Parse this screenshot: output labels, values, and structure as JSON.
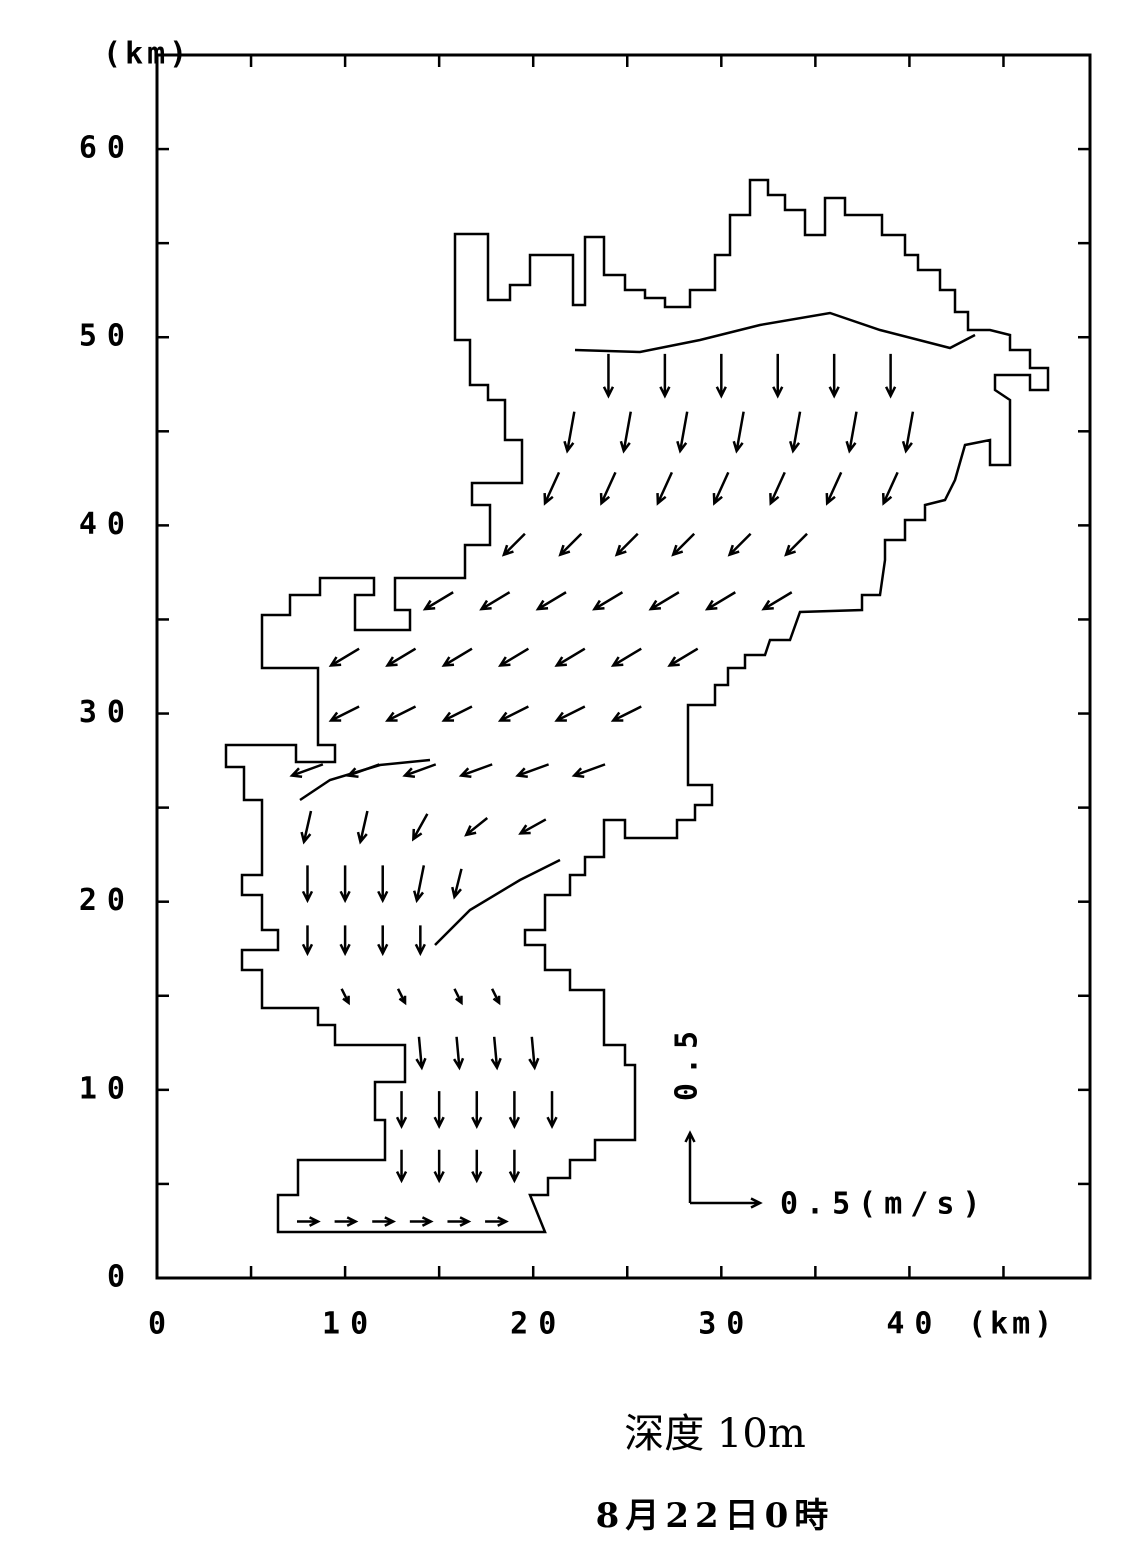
{
  "chart_data": {
    "type": "quiver",
    "ylabel": "(km)",
    "xlabel": "(km)",
    "xlim": [
      0,
      49.6
    ],
    "ylim": [
      0,
      65
    ],
    "xticks": [
      0,
      10,
      20,
      30,
      40
    ],
    "xminorticks": [
      5,
      15,
      25,
      35,
      45
    ],
    "yticks": [
      0,
      10,
      20,
      30,
      40,
      50,
      60
    ],
    "yminorticks": [
      5,
      15,
      25,
      35,
      45,
      55
    ],
    "key": {
      "u": 0.5,
      "v": 0.5,
      "u_label": "0.5(m/s)",
      "v_label": "0.5"
    },
    "subtitle": "深度 10m",
    "caption": "8月22日0時",
    "color": "#000000",
    "vectors": [
      {
        "x": 24,
        "y": 48,
        "u": 0,
        "v": -0.3
      },
      {
        "x": 27,
        "y": 48,
        "u": 0,
        "v": -0.3
      },
      {
        "x": 30,
        "y": 48,
        "u": 0,
        "v": -0.3
      },
      {
        "x": 33,
        "y": 48,
        "u": 0,
        "v": -0.3
      },
      {
        "x": 36,
        "y": 48,
        "u": 0,
        "v": -0.3
      },
      {
        "x": 39,
        "y": 48,
        "u": 0,
        "v": -0.3
      },
      {
        "x": 22,
        "y": 45,
        "u": -0.05,
        "v": -0.28
      },
      {
        "x": 25,
        "y": 45,
        "u": -0.05,
        "v": -0.28
      },
      {
        "x": 28,
        "y": 45,
        "u": -0.05,
        "v": -0.28
      },
      {
        "x": 31,
        "y": 45,
        "u": -0.05,
        "v": -0.28
      },
      {
        "x": 34,
        "y": 45,
        "u": -0.05,
        "v": -0.28
      },
      {
        "x": 37,
        "y": 45,
        "u": -0.05,
        "v": -0.28
      },
      {
        "x": 40,
        "y": 45,
        "u": -0.05,
        "v": -0.28
      },
      {
        "x": 21,
        "y": 42,
        "u": -0.1,
        "v": -0.22
      },
      {
        "x": 24,
        "y": 42,
        "u": -0.1,
        "v": -0.22
      },
      {
        "x": 27,
        "y": 42,
        "u": -0.1,
        "v": -0.22
      },
      {
        "x": 30,
        "y": 42,
        "u": -0.1,
        "v": -0.22
      },
      {
        "x": 33,
        "y": 42,
        "u": -0.1,
        "v": -0.22
      },
      {
        "x": 36,
        "y": 42,
        "u": -0.1,
        "v": -0.22
      },
      {
        "x": 39,
        "y": 42,
        "u": -0.1,
        "v": -0.22
      },
      {
        "x": 19,
        "y": 39,
        "u": -0.15,
        "v": -0.15
      },
      {
        "x": 22,
        "y": 39,
        "u": -0.15,
        "v": -0.15
      },
      {
        "x": 25,
        "y": 39,
        "u": -0.15,
        "v": -0.15
      },
      {
        "x": 28,
        "y": 39,
        "u": -0.15,
        "v": -0.15
      },
      {
        "x": 31,
        "y": 39,
        "u": -0.15,
        "v": -0.15
      },
      {
        "x": 34,
        "y": 39,
        "u": -0.15,
        "v": -0.15
      },
      {
        "x": 15,
        "y": 36,
        "u": -0.2,
        "v": -0.12
      },
      {
        "x": 18,
        "y": 36,
        "u": -0.2,
        "v": -0.12
      },
      {
        "x": 21,
        "y": 36,
        "u": -0.2,
        "v": -0.12
      },
      {
        "x": 24,
        "y": 36,
        "u": -0.2,
        "v": -0.12
      },
      {
        "x": 27,
        "y": 36,
        "u": -0.2,
        "v": -0.12
      },
      {
        "x": 30,
        "y": 36,
        "u": -0.2,
        "v": -0.12
      },
      {
        "x": 33,
        "y": 36,
        "u": -0.2,
        "v": -0.12
      },
      {
        "x": 10,
        "y": 33,
        "u": -0.2,
        "v": -0.12
      },
      {
        "x": 13,
        "y": 33,
        "u": -0.2,
        "v": -0.12
      },
      {
        "x": 16,
        "y": 33,
        "u": -0.2,
        "v": -0.12
      },
      {
        "x": 19,
        "y": 33,
        "u": -0.2,
        "v": -0.12
      },
      {
        "x": 22,
        "y": 33,
        "u": -0.2,
        "v": -0.12
      },
      {
        "x": 25,
        "y": 33,
        "u": -0.2,
        "v": -0.12
      },
      {
        "x": 28,
        "y": 33,
        "u": -0.2,
        "v": -0.12
      },
      {
        "x": 10,
        "y": 30,
        "u": -0.2,
        "v": -0.1
      },
      {
        "x": 13,
        "y": 30,
        "u": -0.2,
        "v": -0.1
      },
      {
        "x": 16,
        "y": 30,
        "u": -0.2,
        "v": -0.1
      },
      {
        "x": 19,
        "y": 30,
        "u": -0.2,
        "v": -0.1
      },
      {
        "x": 22,
        "y": 30,
        "u": -0.2,
        "v": -0.1
      },
      {
        "x": 25,
        "y": 30,
        "u": -0.2,
        "v": -0.1
      },
      {
        "x": 8,
        "y": 27,
        "u": -0.22,
        "v": -0.08
      },
      {
        "x": 11,
        "y": 27,
        "u": -0.22,
        "v": -0.08
      },
      {
        "x": 14,
        "y": 27,
        "u": -0.22,
        "v": -0.08
      },
      {
        "x": 17,
        "y": 27,
        "u": -0.22,
        "v": -0.08
      },
      {
        "x": 20,
        "y": 27,
        "u": -0.22,
        "v": -0.08
      },
      {
        "x": 23,
        "y": 27,
        "u": -0.22,
        "v": -0.08
      },
      {
        "x": 8,
        "y": 24,
        "u": -0.05,
        "v": -0.22
      },
      {
        "x": 11,
        "y": 24,
        "u": -0.05,
        "v": -0.22
      },
      {
        "x": 14,
        "y": 24,
        "u": -0.1,
        "v": -0.18
      },
      {
        "x": 17,
        "y": 24,
        "u": -0.15,
        "v": -0.12
      },
      {
        "x": 20,
        "y": 24,
        "u": -0.18,
        "v": -0.1
      },
      {
        "x": 8,
        "y": 21,
        "u": 0,
        "v": -0.25
      },
      {
        "x": 10,
        "y": 21,
        "u": 0,
        "v": -0.25
      },
      {
        "x": 12,
        "y": 21,
        "u": 0,
        "v": -0.25
      },
      {
        "x": 14,
        "y": 21,
        "u": -0.05,
        "v": -0.25
      },
      {
        "x": 16,
        "y": 21,
        "u": -0.05,
        "v": -0.2
      },
      {
        "x": 8,
        "y": 18,
        "u": 0,
        "v": -0.2
      },
      {
        "x": 10,
        "y": 18,
        "u": 0,
        "v": -0.2
      },
      {
        "x": 12,
        "y": 18,
        "u": 0,
        "v": -0.2
      },
      {
        "x": 14,
        "y": 18,
        "u": 0,
        "v": -0.2
      },
      {
        "x": 10,
        "y": 15,
        "u": 0.05,
        "v": -0.1
      },
      {
        "x": 13,
        "y": 15,
        "u": 0.05,
        "v": -0.1
      },
      {
        "x": 16,
        "y": 15,
        "u": 0.05,
        "v": -0.1
      },
      {
        "x": 18,
        "y": 15,
        "u": 0.05,
        "v": -0.1
      },
      {
        "x": 14,
        "y": 12,
        "u": 0.02,
        "v": -0.22
      },
      {
        "x": 16,
        "y": 12,
        "u": 0.02,
        "v": -0.22
      },
      {
        "x": 18,
        "y": 12,
        "u": 0.02,
        "v": -0.22
      },
      {
        "x": 20,
        "y": 12,
        "u": 0.02,
        "v": -0.22
      },
      {
        "x": 13,
        "y": 9,
        "u": 0,
        "v": -0.25
      },
      {
        "x": 15,
        "y": 9,
        "u": 0,
        "v": -0.25
      },
      {
        "x": 17,
        "y": 9,
        "u": 0,
        "v": -0.25
      },
      {
        "x": 19,
        "y": 9,
        "u": 0,
        "v": -0.25
      },
      {
        "x": 21,
        "y": 9,
        "u": 0,
        "v": -0.25
      },
      {
        "x": 13,
        "y": 6,
        "u": 0,
        "v": -0.22
      },
      {
        "x": 15,
        "y": 6,
        "u": 0,
        "v": -0.22
      },
      {
        "x": 17,
        "y": 6,
        "u": 0,
        "v": -0.22
      },
      {
        "x": 19,
        "y": 6,
        "u": 0,
        "v": -0.22
      },
      {
        "x": 8,
        "y": 3,
        "u": 0.15,
        "v": 0
      },
      {
        "x": 10,
        "y": 3,
        "u": 0.15,
        "v": 0
      },
      {
        "x": 12,
        "y": 3,
        "u": 0.15,
        "v": 0
      },
      {
        "x": 14,
        "y": 3,
        "u": 0.15,
        "v": 0
      },
      {
        "x": 16,
        "y": 3,
        "u": 0.15,
        "v": 0
      },
      {
        "x": 18,
        "y": 3,
        "u": 0.15,
        "v": 0
      }
    ]
  }
}
